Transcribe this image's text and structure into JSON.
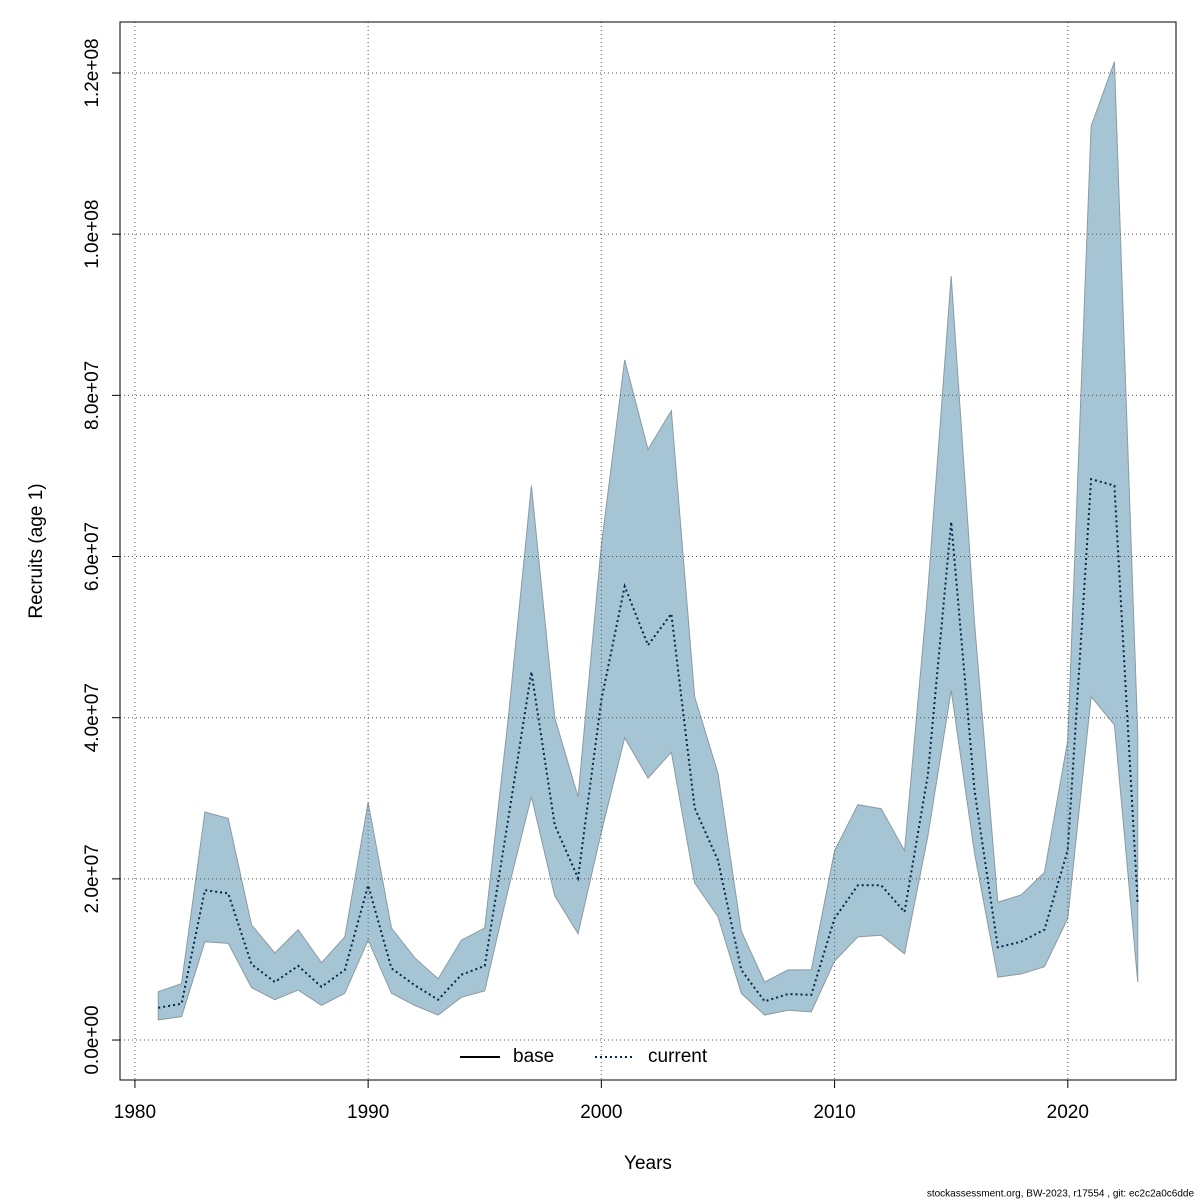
{
  "chart_data": {
    "type": "band-line",
    "x_label": "Years",
    "y_label": "Recruits (age 1)",
    "footer": "stockassessment.org, BW-2023, r17554 , git: ec2c2a0c6dde",
    "x": [
      1981,
      1982,
      1983,
      1984,
      1985,
      1986,
      1987,
      1988,
      1989,
      1990,
      1991,
      1992,
      1993,
      1994,
      1995,
      1996,
      1997,
      1998,
      1999,
      2000,
      2001,
      2002,
      2003,
      2004,
      2005,
      2006,
      2007,
      2008,
      2009,
      2010,
      2011,
      2012,
      2013,
      2014,
      2015,
      2016,
      2017,
      2018,
      2019,
      2020,
      2021,
      2022,
      2023
    ],
    "series": [
      {
        "name": "base",
        "color": "#000000",
        "linestyle": "solid"
      },
      {
        "name": "current",
        "color": "#00284a",
        "linestyle": "dotted",
        "values": [
          4000000.0,
          4500000.0,
          18600000.0,
          18200000.0,
          9400000.0,
          7200000.0,
          9200000.0,
          6600000.0,
          8700000.0,
          19200000.0,
          8900000.0,
          6800000.0,
          5000000.0,
          8100000.0,
          9200000.0,
          27300000.0,
          45700000.0,
          26700000.0,
          20100000.0,
          42200000.0,
          56300000.0,
          49000000.0,
          52900000.0,
          28800000.0,
          22300000.0,
          8700000.0,
          4800000.0,
          5700000.0,
          5600000.0,
          15100000.0,
          19200000.0,
          19200000.0,
          15900000.0,
          32900000.0,
          64300000.0,
          31000000.0,
          11500000.0,
          12200000.0,
          13700000.0,
          23600000.0,
          69600000.0,
          68800000.0,
          16800000.0
        ]
      }
    ],
    "band": {
      "color": "#a5c4d4",
      "edge_color": "#8c9aa3",
      "upper": [
        6000000.0,
        7000000.0,
        28300000.0,
        27500000.0,
        14300000.0,
        10800000.0,
        13700000.0,
        9600000.0,
        12800000.0,
        29500000.0,
        13900000.0,
        10200000.0,
        7600000.0,
        12400000.0,
        13900000.0,
        39700000.0,
        68800000.0,
        40000000.0,
        30200000.0,
        61400000.0,
        84400000.0,
        73300000.0,
        78100000.0,
        42600000.0,
        33100000.0,
        13500000.0,
        7200000.0,
        8700000.0,
        8700000.0,
        23500000.0,
        29200000.0,
        28700000.0,
        23500000.0,
        55800000.0,
        94800000.0,
        51800000.0,
        17100000.0,
        18000000.0,
        20800000.0,
        37200000.0,
        113400000.0,
        121400000.0,
        37900000.0
      ],
      "lower": [
        2500000.0,
        2900000.0,
        12200000.0,
        12000000.0,
        6500000.0,
        5000000.0,
        6200000.0,
        4300000.0,
        5800000.0,
        12400000.0,
        5800000.0,
        4300000.0,
        3100000.0,
        5300000.0,
        6100000.0,
        18600000.0,
        30200000.0,
        17900000.0,
        13200000.0,
        25800000.0,
        37500000.0,
        32500000.0,
        35700000.0,
        19500000.0,
        15300000.0,
        5800000.0,
        3100000.0,
        3700000.0,
        3500000.0,
        9800000.0,
        12800000.0,
        13000000.0,
        10700000.0,
        25300000.0,
        43400000.0,
        23200000.0,
        7800000.0,
        8200000.0,
        9100000.0,
        15100000.0,
        42600000.0,
        39100000.0,
        7200000.0
      ]
    },
    "xlim": [
      1979.36,
      2024.64
    ],
    "ylim": [
      -4960000.0,
      126330000.0
    ],
    "xticks": [
      1980,
      1990,
      2000,
      2010,
      2020
    ],
    "yticks": [
      {
        "value": 0,
        "label": "0.0e+00"
      },
      {
        "value": 20000000,
        "label": "2.0e+07"
      },
      {
        "value": 40000000,
        "label": "4.0e+07"
      },
      {
        "value": 60000000,
        "label": "6.0e+07"
      },
      {
        "value": 80000000,
        "label": "8.0e+07"
      },
      {
        "value": 100000000,
        "label": "1.0e+08"
      },
      {
        "value": 120000000,
        "label": "1.2e+08"
      }
    ],
    "grid": true,
    "legend": "bottom"
  }
}
